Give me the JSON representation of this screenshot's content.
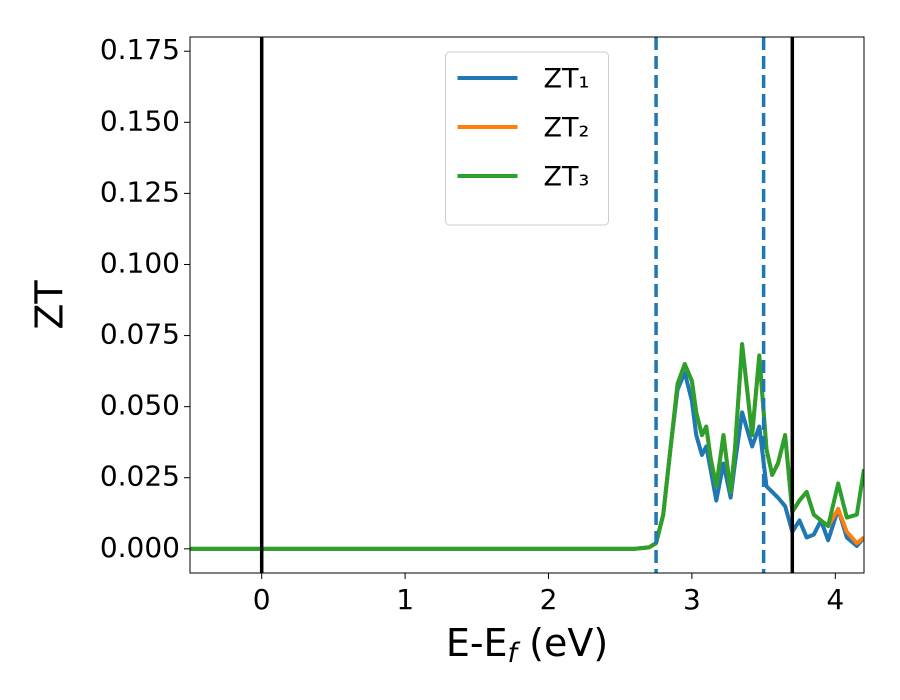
{
  "chart_data": {
    "type": "line",
    "x_label": [
      "E-E",
      "f",
      " (eV)"
    ],
    "y_label": "ZT",
    "x": [
      -0.5,
      2.6,
      2.7,
      2.75,
      2.8,
      2.85,
      2.9,
      2.95,
      3.0,
      3.03,
      3.07,
      3.1,
      3.13,
      3.17,
      3.22,
      3.27,
      3.3,
      3.35,
      3.42,
      3.47,
      3.52,
      3.56,
      3.6,
      3.65,
      3.7,
      3.75,
      3.8,
      3.85,
      3.9,
      3.95,
      4.02,
      4.08,
      4.15,
      4.2
    ],
    "series": [
      {
        "name": "ZT₁",
        "color": "#1f77b4",
        "values": [
          0,
          0,
          0.0005,
          0.002,
          0.012,
          0.035,
          0.056,
          0.062,
          0.052,
          0.04,
          0.033,
          0.036,
          0.028,
          0.017,
          0.03,
          0.018,
          0.03,
          0.048,
          0.036,
          0.043,
          0.022,
          0.02,
          0.018,
          0.015,
          0.006,
          0.01,
          0.004,
          0.005,
          0.01,
          0.003,
          0.014,
          0.004,
          0.001,
          0.004
        ]
      },
      {
        "name": "ZT₂",
        "color": "#ff7f0e",
        "values": [
          0,
          0,
          0.0005,
          0.002,
          0.012,
          0.035,
          0.058,
          0.065,
          0.059,
          0.048,
          0.04,
          0.043,
          0.032,
          0.022,
          0.04,
          0.02,
          0.035,
          0.072,
          0.04,
          0.068,
          0.035,
          0.026,
          0.03,
          0.04,
          0.013,
          0.017,
          0.02,
          0.012,
          0.01,
          0.008,
          0.014,
          0.006,
          0.002,
          0.004
        ]
      },
      {
        "name": "ZT₃",
        "color": "#2ca02c",
        "values": [
          0,
          0,
          0.0005,
          0.002,
          0.012,
          0.035,
          0.058,
          0.065,
          0.059,
          0.048,
          0.04,
          0.043,
          0.032,
          0.022,
          0.04,
          0.02,
          0.035,
          0.072,
          0.04,
          0.068,
          0.035,
          0.026,
          0.03,
          0.04,
          0.013,
          0.017,
          0.02,
          0.012,
          0.01,
          0.008,
          0.023,
          0.011,
          0.012,
          0.028
        ]
      }
    ],
    "vlines": [
      {
        "x": 0,
        "color": "#000000",
        "dashed": false
      },
      {
        "x": 3.7,
        "color": "#000000",
        "dashed": false
      },
      {
        "x": 2.75,
        "color": "#1f77b4",
        "dashed": true
      },
      {
        "x": 3.5,
        "color": "#1f77b4",
        "dashed": true
      }
    ],
    "xlim": [
      -0.5,
      4.2
    ],
    "ylim": [
      -0.0085,
      0.18
    ],
    "xticks": [
      0,
      1,
      2,
      3,
      4
    ],
    "yticks": [
      {
        "value": 0,
        "label": "0.000"
      },
      0.025,
      {
        "value": 0.05,
        "label": "0.050"
      },
      0.075,
      {
        "value": 0.1,
        "label": "0.100"
      },
      0.125,
      {
        "value": 0.15,
        "label": "0.150"
      },
      0.175
    ],
    "grid": false,
    "legend": "upper center"
  }
}
